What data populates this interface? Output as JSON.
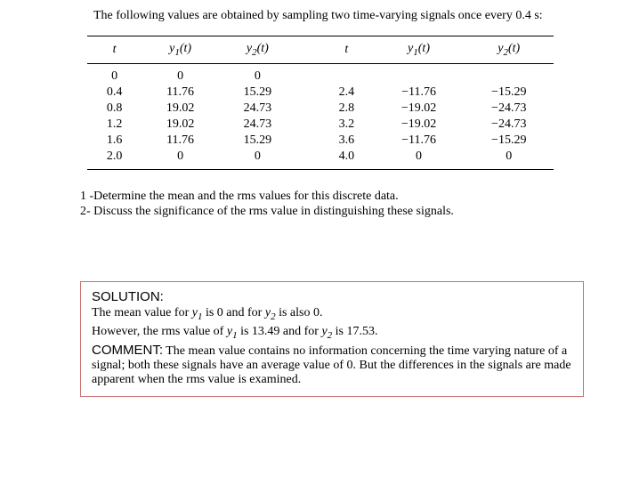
{
  "intro": "The following values are obtained by sampling two time-varying signals once every 0.4 s:",
  "headers": {
    "t": "t",
    "y1_base": "y",
    "y1_sub": "1",
    "y1_arg": "(t)",
    "y2_base": "y",
    "y2_sub": "2",
    "y2_arg": "(t)"
  },
  "rows_left": [
    {
      "t": "0",
      "y1": "0",
      "y2": "0"
    },
    {
      "t": "0.4",
      "y1": "11.76",
      "y2": "15.29"
    },
    {
      "t": "0.8",
      "y1": "19.02",
      "y2": "24.73"
    },
    {
      "t": "1.2",
      "y1": "19.02",
      "y2": "24.73"
    },
    {
      "t": "1.6",
      "y1": "11.76",
      "y2": "15.29"
    },
    {
      "t": "2.0",
      "y1": "0",
      "y2": "0"
    }
  ],
  "rows_right": [
    {
      "t": "",
      "y1": "",
      "y2": ""
    },
    {
      "t": "2.4",
      "y1": "−11.76",
      "y2": "−15.29"
    },
    {
      "t": "2.8",
      "y1": "−19.02",
      "y2": "−24.73"
    },
    {
      "t": "3.2",
      "y1": "−19.02",
      "y2": "−24.73"
    },
    {
      "t": "3.6",
      "y1": "−11.76",
      "y2": "−15.29"
    },
    {
      "t": "4.0",
      "y1": "0",
      "y2": "0"
    }
  ],
  "questions": {
    "q1": "1 -Determine the mean and the rms values for this discrete data.",
    "q2": "2- Discuss the significance of the rms value in distinguishing these signals."
  },
  "solution": {
    "title": "SOLUTION:",
    "mean_p1": "The mean value for ",
    "mean_y1": "y",
    "mean_y1_sub": "1",
    "mean_p2": " is 0 and for ",
    "mean_y2": "y",
    "mean_y2_sub": "2",
    "mean_p3": " is also 0.",
    "rms_p1": "However, the rms value of ",
    "rms_y1": "y",
    "rms_y1_sub": "1",
    "rms_p2": " is 13.49 and for ",
    "rms_y2": "y",
    "rms_y2_sub": "2",
    "rms_p3": " is 17.53.",
    "comment_title": "COMMENT:",
    "comment_text": "  The mean value contains no information concerning the time varying nature of a signal; both these signals have an average value of 0.  But the differences in the signals are made apparent when the rms value is examined."
  }
}
